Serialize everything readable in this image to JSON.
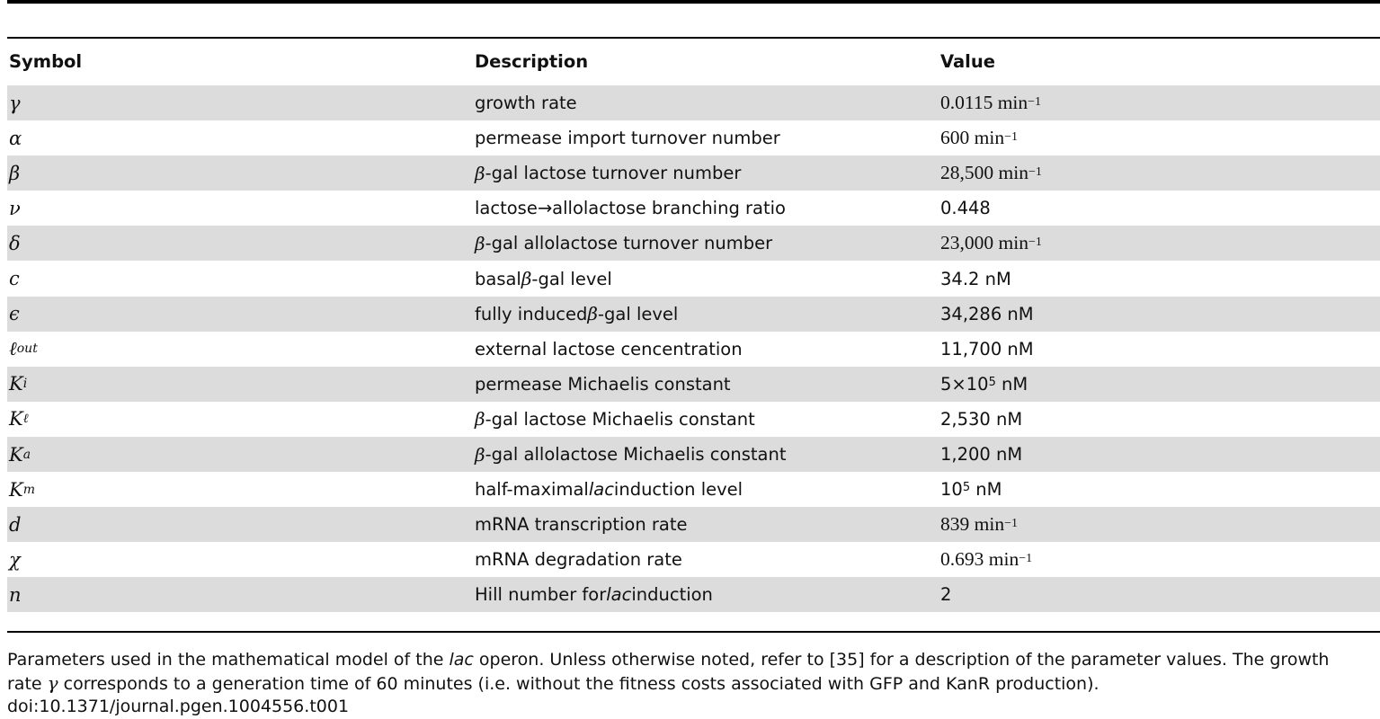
{
  "table": {
    "headers": {
      "symbol": "Symbol",
      "description": "Description",
      "value": "Value"
    },
    "rows": [
      {
        "symbol": "γ",
        "desc_pre": "",
        "desc_greek": "",
        "desc_mid": "growth rate",
        "desc_ital": "",
        "desc_post": "",
        "value_num": "0.0115 min",
        "value_sup": "−1",
        "value_unit": "",
        "value_style": "serif"
      },
      {
        "symbol": "α",
        "desc_pre": "",
        "desc_greek": "",
        "desc_mid": "permease import turnover number",
        "desc_ital": "",
        "desc_post": "",
        "value_num": "600 min",
        "value_sup": "−1",
        "value_unit": "",
        "value_style": "serif"
      },
      {
        "symbol": "β",
        "desc_pre": "",
        "desc_greek": "β",
        "desc_mid": "-gal lactose turnover number",
        "desc_ital": "",
        "desc_post": "",
        "value_num": "28,500 min",
        "value_sup": "−1",
        "value_unit": "",
        "value_style": "serif"
      },
      {
        "symbol": "ν",
        "desc_pre": "",
        "desc_greek": "",
        "desc_mid": "lactose→allolactose branching ratio",
        "desc_ital": "",
        "desc_post": "",
        "value_num": "0.448",
        "value_sup": "",
        "value_unit": "",
        "value_style": "sans"
      },
      {
        "symbol": "δ",
        "desc_pre": "",
        "desc_greek": "β",
        "desc_mid": "-gal allolactose turnover number",
        "desc_ital": "",
        "desc_post": "",
        "value_num": "23,000 min",
        "value_sup": "−1",
        "value_unit": "",
        "value_style": "serif"
      },
      {
        "symbol": "c",
        "desc_pre": "basal ",
        "desc_greek": "β",
        "desc_mid": "-gal level",
        "desc_ital": "",
        "desc_post": "",
        "value_num": "34.2 nM",
        "value_sup": "",
        "value_unit": "",
        "value_style": "sans"
      },
      {
        "symbol": "ϵ",
        "desc_pre": "fully induced ",
        "desc_greek": "β",
        "desc_mid": "-gal level",
        "desc_ital": "",
        "desc_post": "",
        "value_num": "34,286 nM",
        "value_sup": "",
        "value_unit": "",
        "value_style": "sans"
      },
      {
        "symbol": "ℓ",
        "symbol_sub": "out",
        "desc_pre": "",
        "desc_greek": "",
        "desc_mid": "external lactose cencentration",
        "desc_ital": "",
        "desc_post": "",
        "value_num": "11,700 nM",
        "value_sup": "",
        "value_unit": "",
        "value_style": "sans"
      },
      {
        "symbol": "K",
        "symbol_sub": "i",
        "desc_pre": "",
        "desc_greek": "",
        "desc_mid": "permease Michaelis constant",
        "desc_ital": "",
        "desc_post": "",
        "value_num": "5×10",
        "value_sup": "5",
        "value_unit": " nM",
        "value_style": "sans"
      },
      {
        "symbol": "K",
        "symbol_sub": "ℓ",
        "desc_pre": "",
        "desc_greek": "β",
        "desc_mid": "-gal lactose Michaelis constant",
        "desc_ital": "",
        "desc_post": "",
        "value_num": "2,530 nM",
        "value_sup": "",
        "value_unit": "",
        "value_style": "sans"
      },
      {
        "symbol": "K",
        "symbol_sub": "a",
        "desc_pre": "",
        "desc_greek": "β",
        "desc_mid": "-gal allolactose Michaelis constant",
        "desc_ital": "",
        "desc_post": "",
        "value_num": "1,200 nM",
        "value_sup": "",
        "value_unit": "",
        "value_style": "sans"
      },
      {
        "symbol": "K",
        "symbol_sub": "m",
        "desc_pre": "",
        "desc_greek": "",
        "desc_mid": "half-maximal ",
        "desc_ital": "lac",
        "desc_post": " induction level",
        "value_num": "10",
        "value_sup": "5",
        "value_unit": " nM",
        "value_style": "sans"
      },
      {
        "symbol": "d",
        "desc_pre": "",
        "desc_greek": "",
        "desc_mid": "mRNA transcription rate",
        "desc_ital": "",
        "desc_post": "",
        "value_num": "839 min",
        "value_sup": "−1",
        "value_unit": "",
        "value_style": "serif"
      },
      {
        "symbol": "χ",
        "desc_pre": "",
        "desc_greek": "",
        "desc_mid": "mRNA degradation rate",
        "desc_ital": "",
        "desc_post": "",
        "value_num": "0.693 min",
        "value_sup": "−1",
        "value_unit": "",
        "value_style": "serif"
      },
      {
        "symbol": "n",
        "desc_pre": "",
        "desc_greek": "",
        "desc_mid": "Hill number for ",
        "desc_ital": "lac",
        "desc_post": " induction",
        "value_num": "2",
        "value_sup": "",
        "value_unit": "",
        "value_style": "sans"
      }
    ]
  },
  "caption": {
    "part1": "Parameters used in the mathematical model of the ",
    "part1_ital": "lac",
    "part2": " operon. Unless otherwise noted, refer to [35] for a description of the parameter values. The growth rate ",
    "part2_greek": "γ",
    "part3": " corresponds to a generation time of 60 minutes (i.e. without the fitness costs associated with GFP and KanR production).",
    "doi": "doi:10.1371/journal.pgen.1004556.t001"
  }
}
